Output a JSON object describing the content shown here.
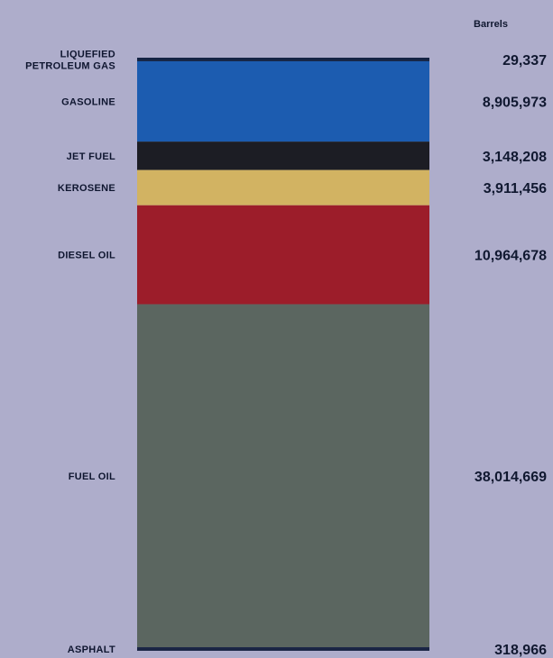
{
  "chart_data": {
    "type": "bar",
    "orientation": "stacked-vertical",
    "unit_label": "Barrels",
    "series": [
      {
        "name": "LIQUEFIED PETROLEUM GAS",
        "label_lines": [
          "LIQUEFIED",
          "PETROLEUM GAS"
        ],
        "value": 29337,
        "value_text": "29,337",
        "color": "#152444"
      },
      {
        "name": "GASOLINE",
        "label_lines": [
          "GASOLINE"
        ],
        "value": 8905973,
        "value_text": "8,905,973",
        "color": "#1c5cb0"
      },
      {
        "name": "JET FUEL",
        "label_lines": [
          "JET FUEL"
        ],
        "value": 3148208,
        "value_text": "3,148,208",
        "color": "#1c1d24"
      },
      {
        "name": "KEROSENE",
        "label_lines": [
          "KEROSENE"
        ],
        "value": 3911456,
        "value_text": "3,911,456",
        "color": "#d2b362"
      },
      {
        "name": "DIESEL OIL",
        "label_lines": [
          "DIESEL OIL"
        ],
        "value": 10964678,
        "value_text": "10,964,678",
        "color": "#9c1d2a"
      },
      {
        "name": "FUEL OIL",
        "label_lines": [
          "FUEL OIL"
        ],
        "value": 38014669,
        "value_text": "38,014,669",
        "color": "#5b6660"
      },
      {
        "name": "ASPHALT",
        "label_lines": [
          "ASPHALT"
        ],
        "value": 318966,
        "value_text": "318,966",
        "color": "#1a2544"
      }
    ]
  }
}
